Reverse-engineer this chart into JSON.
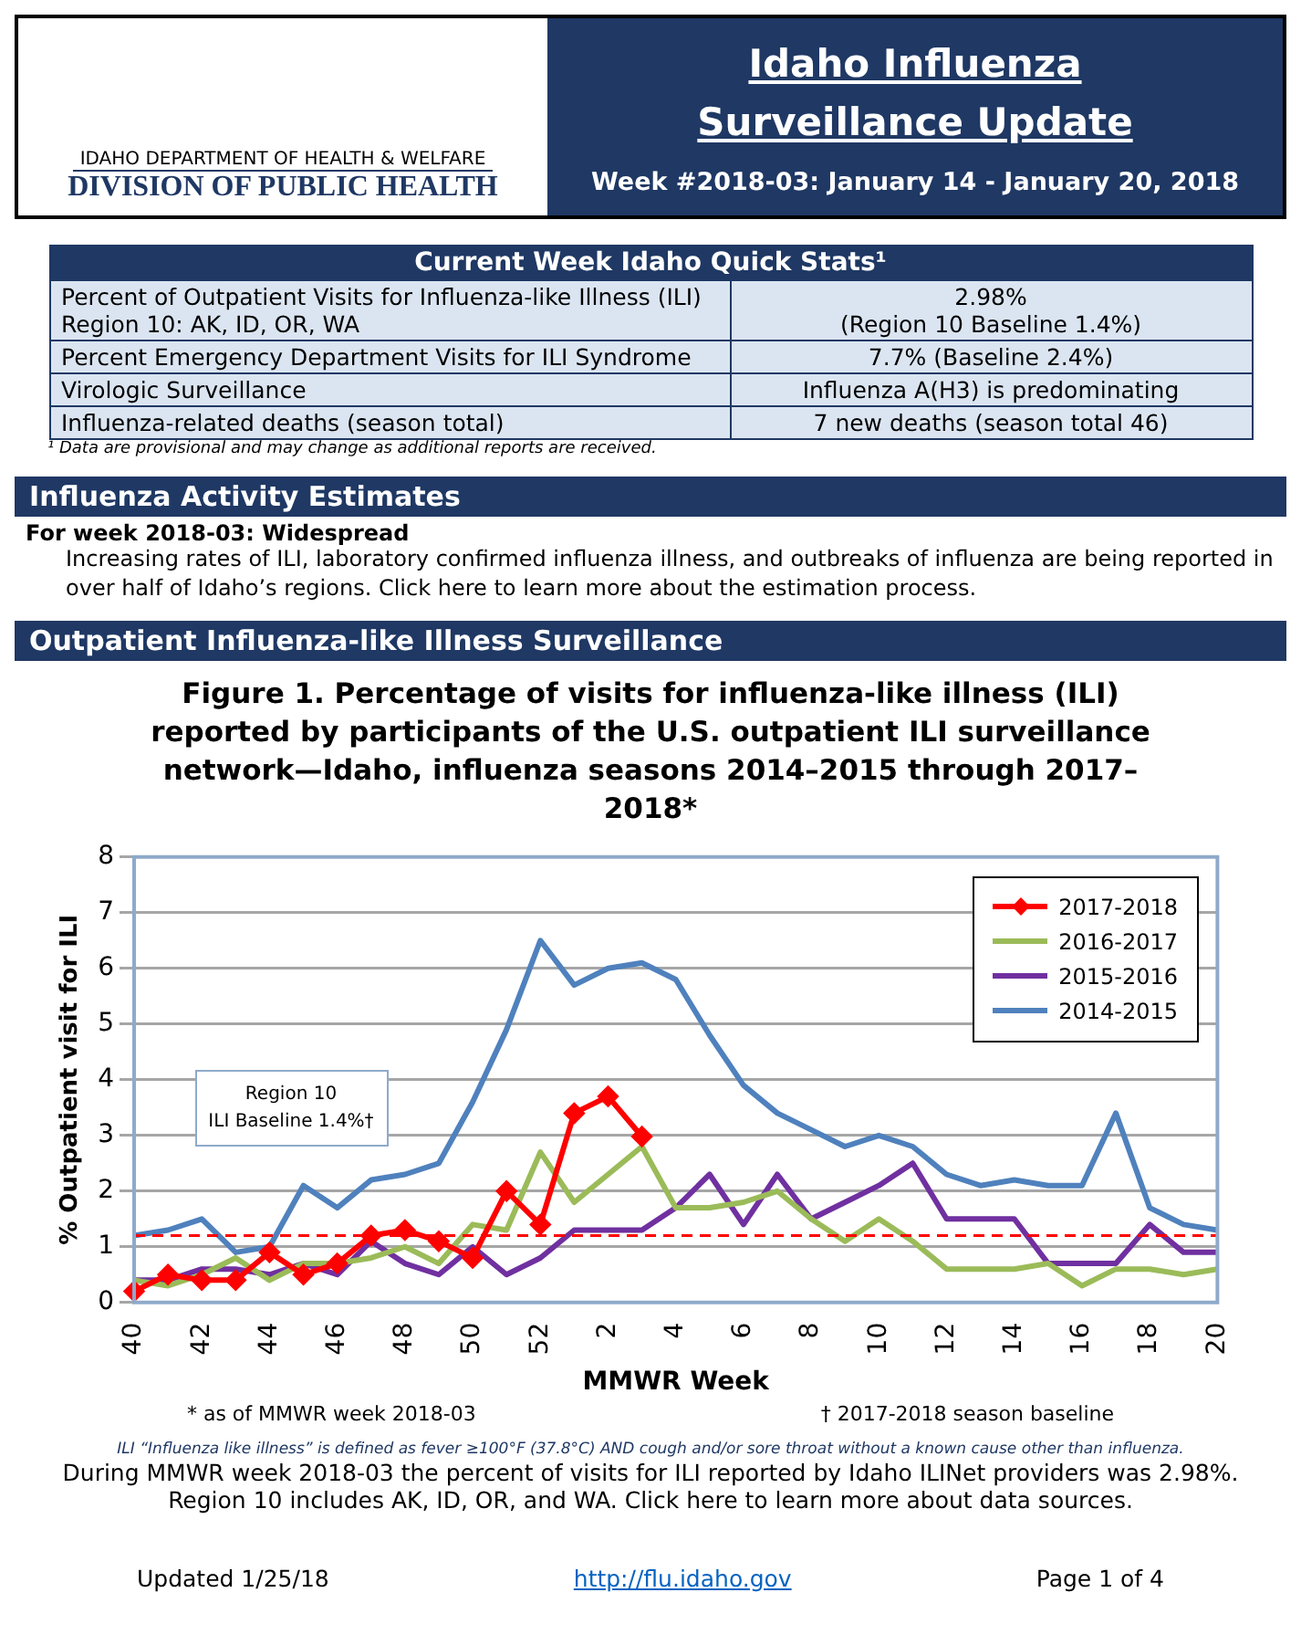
{
  "chart_data": {
    "type": "line",
    "title": "Figure 1. Percentage of visits for influenza-like illness (ILI) reported by participants of the U.S. outpatient ILI surveillance network—Idaho, influenza seasons 2014–2015 through 2017–2018*",
    "xlabel": "MMWR Week",
    "ylabel": "% Outpatient visit for ILI",
    "categories": [
      "40",
      null,
      "42",
      null,
      "44",
      null,
      "46",
      null,
      "48",
      null,
      "50",
      null,
      "52",
      null,
      "2",
      null,
      "4",
      null,
      "6",
      null,
      "8",
      null,
      "10",
      null,
      "12",
      null,
      "14",
      null,
      "16",
      null,
      "18",
      null,
      "20"
    ],
    "series": [
      {
        "name": "2017-2018",
        "color": "#ff0000",
        "marker": "diamond",
        "values": [
          0.2,
          0.5,
          0.4,
          0.4,
          0.9,
          0.5,
          0.7,
          1.2,
          1.3,
          1.1,
          0.8,
          2.0,
          1.4,
          3.4,
          3.7,
          2.98,
          null,
          null,
          null,
          null,
          null,
          null,
          null,
          null,
          null,
          null,
          null,
          null,
          null,
          null,
          null,
          null,
          null
        ]
      },
      {
        "name": "2016-2017",
        "color": "#9bbb59",
        "values": [
          0.4,
          0.3,
          0.5,
          0.8,
          0.4,
          0.7,
          0.7,
          0.8,
          1.0,
          0.7,
          1.4,
          1.3,
          2.7,
          1.8,
          2.3,
          2.8,
          1.7,
          1.7,
          1.8,
          2.0,
          1.5,
          1.1,
          1.5,
          1.1,
          0.6,
          0.6,
          0.6,
          0.7,
          0.3,
          0.6,
          0.6,
          0.5,
          0.6
        ]
      },
      {
        "name": "2015-2016",
        "color": "#7030a0",
        "values": [
          0.4,
          0.4,
          0.6,
          0.6,
          0.5,
          0.7,
          0.5,
          1.1,
          0.7,
          0.5,
          1.0,
          0.5,
          0.8,
          1.3,
          1.3,
          1.3,
          1.7,
          2.3,
          1.4,
          2.3,
          1.5,
          1.8,
          2.1,
          2.5,
          1.5,
          1.5,
          1.5,
          0.7,
          0.7,
          0.7,
          1.4,
          0.9,
          0.9
        ]
      },
      {
        "name": "2014-2015",
        "color": "#4f81bd",
        "values": [
          1.2,
          1.3,
          1.5,
          0.9,
          1.0,
          2.1,
          1.7,
          2.2,
          2.3,
          2.5,
          3.6,
          4.9,
          6.5,
          5.7,
          6.0,
          6.1,
          5.8,
          4.8,
          3.9,
          3.4,
          3.1,
          2.8,
          3.0,
          2.8,
          2.3,
          2.1,
          2.2,
          2.1,
          2.1,
          3.4,
          1.7,
          1.4,
          1.3
        ]
      }
    ],
    "ylim": [
      0,
      8
    ],
    "yticks": [
      0,
      1,
      2,
      3,
      4,
      5,
      6,
      7,
      8
    ],
    "grid": "y",
    "legend": "top right",
    "ref_lines": [
      {
        "axis": "y",
        "value": 1.2,
        "color": "#ff0000",
        "line_style": "dashed"
      }
    ],
    "annotations": [
      "IDAHO DEPARTMENT OF HEALTH & WELFARE",
      "DIVISION OF PUBLIC HEALTH",
      "Idaho Influenza Surveillance Update",
      "Week #2018-03: January 14 - January 20, 2018",
      "Current Week Idaho Quick Stats¹",
      "Percent of Outpatient Visits for Influenza-like Illness (ILI)\nRegion 10: AK, ID, OR, WA",
      "2.98%\n(Region 10 Baseline 1.4%)",
      "Percent Emergency Department Visits for ILI Syndrome",
      "7.7% (Baseline 2.4%)",
      "Virologic Surveillance",
      "Influenza A(H3) is predominating",
      "Influenza-related deaths (season total)",
      "7 new deaths (season total 46)",
      "¹ Data are provisional and may change as additional reports are received.",
      "Influenza Activity Estimates",
      "For week 2018-03: Widespread",
      "Increasing rates of ILI, laboratory confirmed influenza illness, and outbreaks of influenza are being reported in over half of Idaho’s regions. Click here to learn more about the estimation process.",
      "Outpatient Influenza-like Illness Surveillance",
      "Region 10\nILI Baseline 1.4%†",
      "* as of MMWR week 2018-03",
      "† 2017-2018 season baseline",
      "ILI “Influenza like illness” is defined as fever ≥100°F (37.8°C) AND cough and/or sore throat without a known cause other than influenza.",
      "During MMWR week 2018-03 the percent of visits for ILI reported by Idaho ILINet providers was 2.98%.",
      "Region 10 includes AK, ID, OR, and WA. Click here to learn more about data sources.",
      "Updated 1/25/18",
      "http://flu.idaho.gov",
      "Page 1 of 4"
    ]
  }
}
